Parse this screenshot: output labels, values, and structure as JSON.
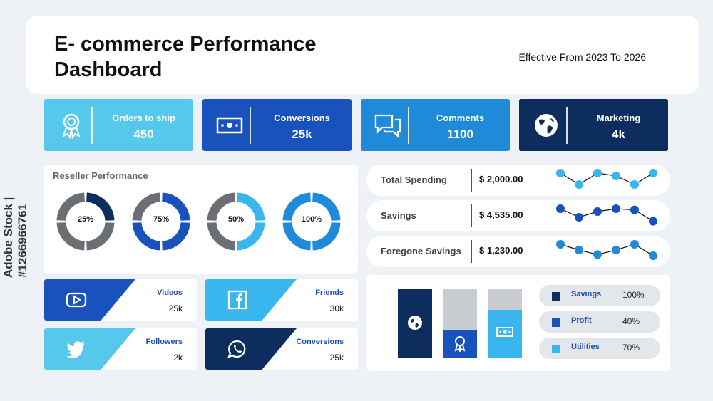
{
  "header": {
    "title": "E- commerce Performance Dashboard",
    "subtitle": "Effective From 2023 To 2026"
  },
  "kpis": [
    {
      "label": "Orders to ship",
      "value": "450",
      "icon": "award-icon",
      "color": "#55c8ec"
    },
    {
      "label": "Conversions",
      "value": "25k",
      "icon": "cash-icon",
      "color": "#1a52bd"
    },
    {
      "label": "Comments",
      "value": "1100",
      "icon": "chat-icon",
      "color": "#1f8ad8"
    },
    {
      "label": "Marketing",
      "value": "4k",
      "icon": "globe-icon",
      "color": "#0c2d5e"
    }
  ],
  "reseller": {
    "title": "Reseller Performance",
    "donuts": [
      {
        "label": "25%",
        "fraction": 0.25,
        "color": "#0c2d5e"
      },
      {
        "label": "75%",
        "fraction": 0.75,
        "color": "#1a52bd"
      },
      {
        "label": "50%",
        "fraction": 0.5,
        "color": "#3ab6ee"
      },
      {
        "label": "100%",
        "fraction": 1.0,
        "color": "#1f8ad8"
      }
    ]
  },
  "spending": [
    {
      "label": "Total Spending",
      "value": "$ 2,000.00",
      "color": "#3ab6ee",
      "trend": [
        3,
        1,
        3,
        2.5,
        1,
        3
      ]
    },
    {
      "label": "Savings",
      "value": "$ 4,535.00",
      "color": "#1a52bd",
      "trend": [
        3,
        1.5,
        2.5,
        3,
        2.8,
        0.8
      ]
    },
    {
      "label": "Foregone Savings",
      "value": "$ 1,230.00",
      "color": "#1f8ad8",
      "trend": [
        3,
        2,
        1.2,
        2,
        3,
        1
      ]
    }
  ],
  "social": [
    {
      "label": "Videos",
      "value": "25k",
      "icon": "youtube-icon",
      "color": "#1a52bd"
    },
    {
      "label": "Friends",
      "value": "30k",
      "icon": "facebook-icon",
      "color": "#3ab6ee"
    },
    {
      "label": "Followers",
      "value": "2k",
      "icon": "twitter-icon",
      "color": "#55c8ec"
    },
    {
      "label": "Conversions",
      "value": "25k",
      "icon": "whatsapp-icon",
      "color": "#0c2d5e"
    }
  ],
  "bars": [
    {
      "fill": 1.0,
      "color": "#0c2d5e",
      "icon": "globe-icon"
    },
    {
      "fill": 0.4,
      "color": "#1a52bd",
      "icon": "award-icon"
    },
    {
      "fill": 0.7,
      "color": "#3ab6ee",
      "icon": "cash-icon"
    }
  ],
  "legend": [
    {
      "label": "Savings",
      "value": "100%",
      "color": "#0c2d5e"
    },
    {
      "label": "Profit",
      "value": "40%",
      "color": "#1a52bd"
    },
    {
      "label": "Utilities",
      "value": "70%",
      "color": "#3ab6ee"
    }
  ],
  "watermark": "Adobe Stock | #1266966761"
}
